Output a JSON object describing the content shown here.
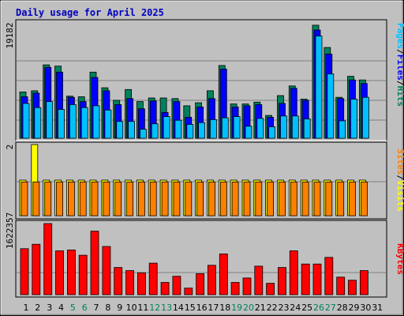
{
  "title": "Daily usage for April 2025",
  "colors": {
    "hits": "#00805c",
    "files": "#0000ff",
    "pages": "#00c0ff",
    "visits": "#ffff00",
    "sites": "#ff8000",
    "kbytes": "#ff0000",
    "weekend": "#00805c",
    "weekday": "#000000",
    "grid": "#808080",
    "plot_bg": "#c0c0c0"
  },
  "chart_data": [
    {
      "type": "bar",
      "panel": "top",
      "ymax_label": "19182",
      "ylim": [
        0,
        19182
      ],
      "x": [
        1,
        2,
        3,
        4,
        5,
        6,
        7,
        8,
        9,
        10,
        11,
        12,
        13,
        14,
        15,
        16,
        17,
        18,
        19,
        20,
        21,
        22,
        23,
        24,
        25,
        26,
        27,
        28,
        29,
        30,
        31
      ],
      "side_labels": [
        {
          "text": "Pages",
          "color": "#00c0ff"
        },
        {
          "text": "/",
          "color": "#000000"
        },
        {
          "text": "Files",
          "color": "#0000ff"
        },
        {
          "text": "/",
          "color": "#000000"
        },
        {
          "text": "Hits",
          "color": "#00805c"
        }
      ],
      "series": [
        {
          "name": "Hits",
          "color": "#00805c",
          "values": [
            7700,
            7900,
            12200,
            12000,
            7000,
            6900,
            11000,
            8400,
            6300,
            8100,
            6100,
            6700,
            6700,
            6600,
            5400,
            5900,
            7900,
            12100,
            5700,
            5700,
            6000,
            3800,
            7100,
            8700,
            6500,
            18800,
            15100,
            6800,
            10300,
            9700,
            0
          ]
        },
        {
          "name": "Files",
          "color": "#0000ff",
          "values": [
            6900,
            7500,
            11800,
            11000,
            6800,
            6100,
            10100,
            7900,
            5600,
            6600,
            4900,
            6200,
            4300,
            6100,
            3500,
            5200,
            6600,
            11500,
            5200,
            5400,
            5600,
            3500,
            5800,
            8300,
            6300,
            18000,
            14000,
            6600,
            9700,
            9100,
            0
          ]
        },
        {
          "name": "Pages",
          "color": "#00c0ff",
          "values": [
            5800,
            5100,
            6100,
            4800,
            5600,
            5100,
            5400,
            4700,
            2800,
            2800,
            1500,
            2400,
            3600,
            3000,
            2300,
            2600,
            3100,
            3400,
            3600,
            2000,
            3300,
            1900,
            3700,
            3700,
            3200,
            17000,
            10700,
            2900,
            6500,
            6800,
            0
          ]
        }
      ]
    },
    {
      "type": "bar",
      "panel": "middle",
      "ymax_label": "2",
      "ylim": [
        0,
        2
      ],
      "side_labels": [
        {
          "text": "Sites",
          "color": "#ff8000"
        },
        {
          "text": "/",
          "color": "#000000"
        },
        {
          "text": "Visits",
          "color": "#ffff00"
        }
      ],
      "series": [
        {
          "name": "Visits",
          "color": "#ffff00",
          "values": [
            1,
            2,
            1,
            1,
            1,
            1,
            1,
            1,
            1,
            1,
            1,
            1,
            1,
            1,
            1,
            1,
            1,
            1,
            1,
            1,
            1,
            1,
            1,
            1,
            1,
            1,
            1,
            1,
            1,
            1,
            0
          ]
        },
        {
          "name": "Sites",
          "color": "#ff8000",
          "values": [
            1,
            1,
            1,
            1,
            1,
            1,
            1,
            1,
            1,
            1,
            1,
            1,
            1,
            1,
            1,
            1,
            1,
            1,
            1,
            1,
            1,
            1,
            1,
            1,
            1,
            1,
            1,
            1,
            1,
            1,
            0
          ]
        }
      ]
    },
    {
      "type": "bar",
      "panel": "bottom",
      "ymax_label": "1622357",
      "ylim": [
        0,
        1622357
      ],
      "side_labels": [
        {
          "text": "KBytes",
          "color": "#ff0000"
        }
      ],
      "series": [
        {
          "name": "KBytes",
          "color": "#ff0000",
          "values": [
            1050000,
            1150000,
            1622000,
            1000000,
            1020000,
            900000,
            1450000,
            1100000,
            620000,
            550000,
            500000,
            720000,
            280000,
            420000,
            150000,
            480000,
            670000,
            930000,
            280000,
            380000,
            650000,
            260000,
            620000,
            1000000,
            700000,
            700000,
            850000,
            400000,
            330000,
            550000,
            0
          ]
        }
      ]
    }
  ],
  "x_axis": {
    "labels": [
      "1",
      "2",
      "3",
      "4",
      "5",
      "6",
      "7",
      "8",
      "9",
      "10",
      "11",
      "12",
      "13",
      "14",
      "15",
      "16",
      "17",
      "18",
      "19",
      "20",
      "21",
      "22",
      "23",
      "24",
      "25",
      "26",
      "27",
      "28",
      "29",
      "30",
      "31"
    ],
    "weekend_days": [
      5,
      6,
      12,
      13,
      19,
      20,
      26,
      27
    ]
  }
}
